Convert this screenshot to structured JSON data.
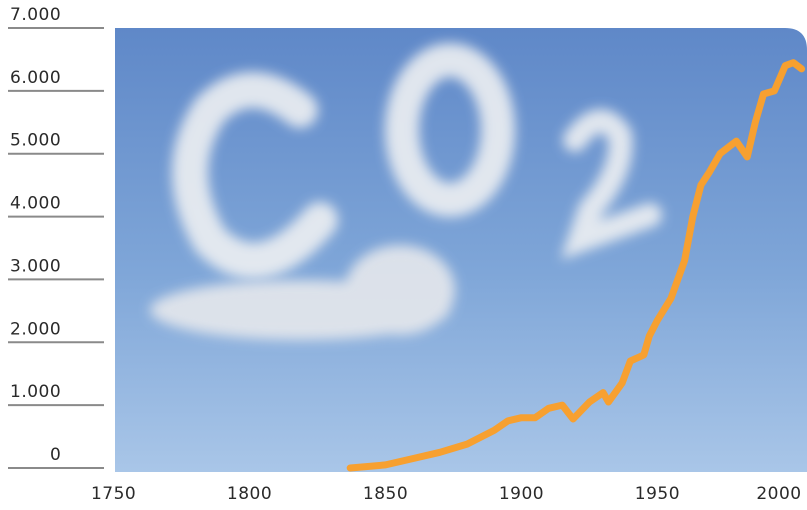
{
  "chart_data": {
    "type": "line",
    "x": [
      1837,
      1850,
      1860,
      1870,
      1880,
      1890,
      1895,
      1900,
      1905,
      1910,
      1915,
      1919,
      1925,
      1930,
      1932,
      1937,
      1940,
      1945,
      1947,
      1950,
      1955,
      1960,
      1963,
      1966,
      1969,
      1973,
      1979,
      1983,
      1986,
      1989,
      1993,
      1997,
      2000,
      2003
    ],
    "series": [
      {
        "color": "#f7a030",
        "values": [
          0,
          50,
          150,
          250,
          380,
          600,
          750,
          800,
          800,
          950,
          1000,
          780,
          1050,
          1200,
          1050,
          1350,
          1700,
          1800,
          2100,
          2350,
          2700,
          3300,
          4000,
          4500,
          4700,
          5000,
          5200,
          4950,
          5500,
          5950,
          6000,
          6400,
          6450,
          6350
        ]
      }
    ],
    "xlim": [
      1745,
      2005
    ],
    "xticks": [
      1750,
      1800,
      1850,
      1900,
      1950,
      2000
    ],
    "ylim": [
      0,
      7000
    ],
    "yticks": [
      0,
      {
        "value": 1000,
        "label": "1.000"
      },
      {
        "value": 2000,
        "label": "2.000"
      },
      {
        "value": 3000,
        "label": "3.000"
      },
      {
        "value": 4000,
        "label": "4.000"
      },
      {
        "value": 5000,
        "label": "5.000"
      },
      {
        "value": 6000,
        "label": "6.000"
      },
      {
        "value": 7000,
        "label": "7.000"
      }
    ]
  }
}
